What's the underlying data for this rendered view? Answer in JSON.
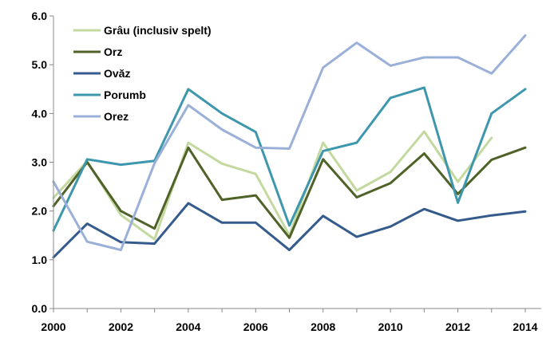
{
  "chart_data": {
    "type": "line",
    "x": [
      2000,
      2001,
      2002,
      2003,
      2004,
      2005,
      2006,
      2007,
      2008,
      2009,
      2010,
      2011,
      2012,
      2013,
      2014
    ],
    "x_tick_labels": [
      "2000",
      "2002",
      "2004",
      "2006",
      "2008",
      "2010",
      "2012",
      "2014"
    ],
    "y_tick_labels": [
      "0.0",
      "1.0",
      "2.0",
      "3.0",
      "4.0",
      "5.0",
      "6.0"
    ],
    "ylim": [
      0,
      6
    ],
    "xlim": [
      2000,
      2014
    ],
    "grid": false,
    "legend_position": "top-left",
    "title": "",
    "xlabel": "",
    "ylabel": "",
    "series": [
      {
        "name": "Grâu (inclusiv spelt)",
        "color": "#c3d9a0",
        "values": [
          2.27,
          3.02,
          1.92,
          1.42,
          3.4,
          2.97,
          2.76,
          1.5,
          3.4,
          2.42,
          2.8,
          3.63,
          2.6,
          3.5,
          null
        ]
      },
      {
        "name": "Orz",
        "color": "#4f6228",
        "values": [
          2.1,
          3.0,
          2.0,
          1.64,
          3.3,
          2.23,
          2.32,
          1.45,
          3.06,
          2.28,
          2.57,
          3.18,
          2.35,
          3.05,
          3.3
        ]
      },
      {
        "name": "Ovăz",
        "color": "#345b8c",
        "values": [
          1.05,
          1.74,
          1.36,
          1.33,
          2.16,
          1.76,
          1.76,
          1.2,
          1.9,
          1.47,
          1.68,
          2.04,
          1.8,
          1.91,
          1.99
        ]
      },
      {
        "name": "Porumb",
        "color": "#3e97ac",
        "values": [
          1.6,
          3.06,
          2.95,
          3.03,
          4.5,
          4.0,
          3.62,
          1.7,
          3.23,
          3.4,
          4.32,
          4.53,
          2.17,
          4.0,
          4.5
        ]
      },
      {
        "name": "Orez",
        "color": "#9ab0d8",
        "values": [
          2.6,
          1.37,
          1.2,
          2.98,
          4.17,
          3.67,
          3.3,
          3.28,
          4.94,
          5.45,
          4.98,
          5.15,
          5.15,
          4.82,
          5.6
        ]
      }
    ]
  }
}
